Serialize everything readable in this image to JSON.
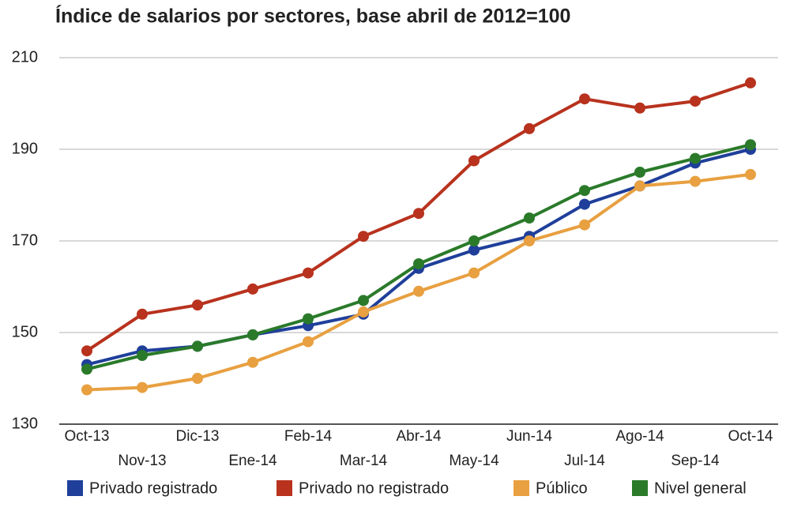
{
  "chart_data": {
    "type": "line",
    "title": "Índice de salarios por sectores, base abril de 2012=100",
    "categories": [
      "Oct-13",
      "Nov-13",
      "Dic-13",
      "Ene-14",
      "Feb-14",
      "Mar-14",
      "Abr-14",
      "May-14",
      "Jun-14",
      "Jul-14",
      "Ago-14",
      "Sep-14",
      "Oct-14"
    ],
    "series": [
      {
        "name": "Privado registrado",
        "color": "#1f3f9a",
        "values": [
          143,
          146,
          147,
          149.5,
          151.5,
          154,
          164,
          168,
          171,
          178,
          182,
          187,
          190
        ]
      },
      {
        "name": "Privado no registrado",
        "color": "#b8321e",
        "values": [
          146,
          154,
          156,
          159.5,
          163,
          171,
          176,
          187.5,
          194.5,
          201,
          199,
          200.5,
          204.5
        ]
      },
      {
        "name": "Público",
        "color": "#e8a040",
        "values": [
          137.5,
          138,
          140,
          143.5,
          148,
          154.5,
          159,
          163,
          170,
          173.5,
          182,
          183,
          184.5
        ]
      },
      {
        "name": "Nivel general",
        "color": "#2a7a2a",
        "values": [
          142,
          145,
          147,
          149.5,
          153,
          157,
          165,
          170,
          175,
          181,
          185,
          188,
          191
        ]
      }
    ],
    "ylim": [
      130,
      210
    ],
    "yticks": [
      130,
      150,
      170,
      190,
      210
    ],
    "grid": true,
    "legend": "bottom"
  }
}
